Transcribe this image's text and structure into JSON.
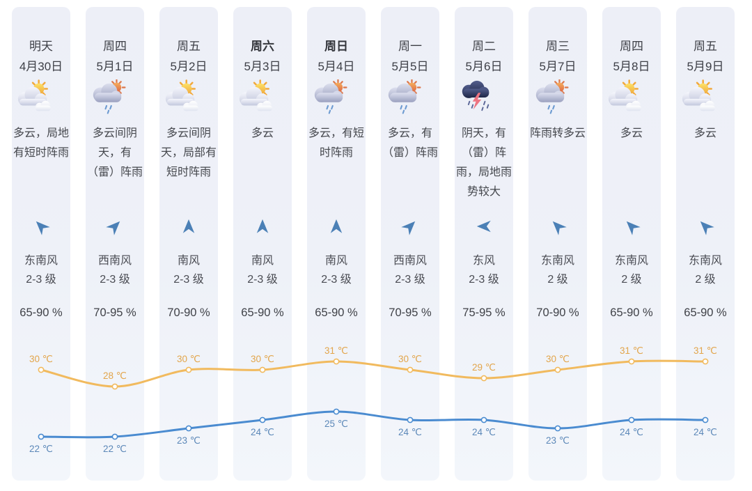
{
  "app": {
    "title_hint": "十天天气预报"
  },
  "columns": [
    {
      "day": "明天",
      "date": "4月30日",
      "bold": false,
      "icon": "sun-cloud",
      "desc": "多云，局地有短时阵雨",
      "wind_dir": "东南风",
      "wind_level": "2-3 级",
      "humidity": "65-90 %",
      "arrow_deg": -45
    },
    {
      "day": "周四",
      "date": "5月1日",
      "bold": false,
      "icon": "sun-rain",
      "desc": "多云间阴天，有（雷）阵雨",
      "wind_dir": "西南风",
      "wind_level": "2-3 级",
      "humidity": "70-95 %",
      "arrow_deg": 45
    },
    {
      "day": "周五",
      "date": "5月2日",
      "bold": false,
      "icon": "sun-cloud",
      "desc": "多云间阴天，局部有短时阵雨",
      "wind_dir": "南风",
      "wind_level": "2-3 级",
      "humidity": "70-90 %",
      "arrow_deg": 0
    },
    {
      "day": "周六",
      "date": "5月3日",
      "bold": true,
      "icon": "sun-cloud",
      "desc": "多云",
      "wind_dir": "南风",
      "wind_level": "2-3 级",
      "humidity": "65-90 %",
      "arrow_deg": 0
    },
    {
      "day": "周日",
      "date": "5月4日",
      "bold": true,
      "icon": "sun-rain",
      "desc": "多云，有短时阵雨",
      "wind_dir": "南风",
      "wind_level": "2-3 级",
      "humidity": "65-90 %",
      "arrow_deg": 0
    },
    {
      "day": "周一",
      "date": "5月5日",
      "bold": false,
      "icon": "sun-rain",
      "desc": "多云，有（雷）阵雨",
      "wind_dir": "西南风",
      "wind_level": "2-3 级",
      "humidity": "70-95 %",
      "arrow_deg": 45
    },
    {
      "day": "周二",
      "date": "5月6日",
      "bold": false,
      "icon": "thunder",
      "desc": "阴天，有（雷）阵雨，局地雨势较大",
      "wind_dir": "东风",
      "wind_level": "2-3 级",
      "humidity": "75-95 %",
      "arrow_deg": -90
    },
    {
      "day": "周三",
      "date": "5月7日",
      "bold": false,
      "icon": "sun-rain",
      "desc": "阵雨转多云",
      "wind_dir": "东南风",
      "wind_level": "2 级",
      "humidity": "70-90 %",
      "arrow_deg": -45
    },
    {
      "day": "周四",
      "date": "5月8日",
      "bold": false,
      "icon": "sun-cloud",
      "desc": "多云",
      "wind_dir": "东南风",
      "wind_level": "2 级",
      "humidity": "65-90 %",
      "arrow_deg": -45
    },
    {
      "day": "周五",
      "date": "5月9日",
      "bold": false,
      "icon": "sun-cloud",
      "desc": "多云",
      "wind_dir": "东南风",
      "wind_level": "2 级",
      "humidity": "65-90 %",
      "arrow_deg": -45
    }
  ],
  "chart_data": {
    "type": "line",
    "categories": [
      "4月30日",
      "5月1日",
      "5月2日",
      "5月3日",
      "5月4日",
      "5月5日",
      "5月6日",
      "5月7日",
      "5月8日",
      "5月9日"
    ],
    "series": [
      {
        "name": "high-temp",
        "values": [
          30,
          28,
          30,
          30,
          31,
          30,
          29,
          30,
          31,
          31
        ],
        "unit": "℃",
        "line_color": "#f1ba5e",
        "label_color": "#e2a54b"
      },
      {
        "name": "low-temp",
        "values": [
          22,
          22,
          23,
          24,
          25,
          24,
          24,
          23,
          24,
          24
        ],
        "unit": "℃",
        "line_color": "#4a8bd0",
        "label_color": "#5c88b8"
      }
    ],
    "label_suffix": " ℃",
    "grid": false,
    "legend": false
  },
  "colors": {
    "column_bg": "#eef1f8",
    "text_dark": "#3d3f46",
    "wind_arrow": "#4b80b6",
    "high_line": "#f1ba5e",
    "low_line": "#4a8bd0"
  },
  "icons": {
    "sun-cloud": "sun with clouds (多云)",
    "sun-rain": "cloud with sun and rain (阵雨)",
    "thunder": "dark cloud with lightning and rain (雷阵雨)",
    "wind-arrow": "wind direction arrow"
  }
}
